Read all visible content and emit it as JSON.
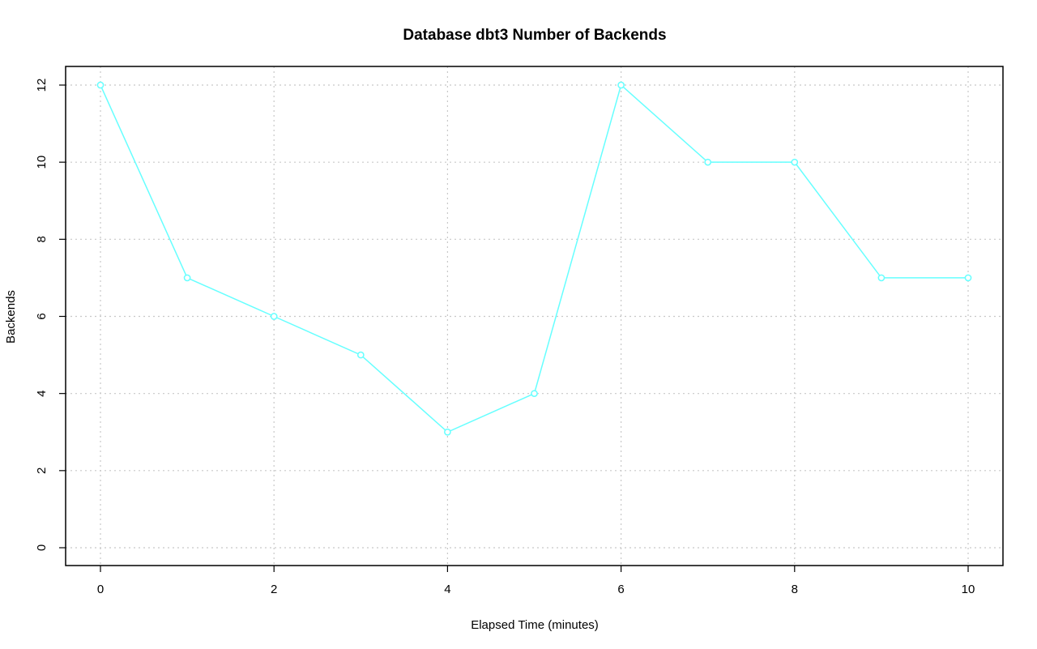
{
  "chart_data": {
    "type": "line",
    "title": "Database dbt3 Number of Backends",
    "xlabel": "Elapsed Time (minutes)",
    "ylabel": "Backends",
    "x": [
      0,
      1,
      2,
      3,
      4,
      5,
      6,
      7,
      8,
      9,
      10
    ],
    "series": [
      {
        "values": [
          12,
          7,
          6,
          5,
          3,
          4,
          12,
          10,
          10,
          7,
          7
        ],
        "color": "#66ffff"
      }
    ],
    "xlim": [
      0,
      10
    ],
    "ylim": [
      0,
      12
    ],
    "xticks": [
      "0",
      "2",
      "4",
      "6",
      "8",
      "10"
    ],
    "yticks": [
      "0",
      "2",
      "4",
      "6",
      "8",
      "10",
      "12"
    ],
    "grid": true,
    "marker": "open-circle"
  }
}
